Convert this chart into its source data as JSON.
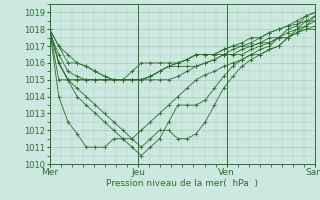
{
  "bg_color": "#cce8e0",
  "grid_color": "#aaccbb",
  "line_color": "#2d6e2d",
  "xlabel": "Pression niveau de la mer(  hPa  )",
  "xtick_labels": [
    "Mer",
    "Jeu",
    "Ven",
    "Sam"
  ],
  "xtick_positions": [
    0,
    1,
    2,
    3
  ],
  "ylim": [
    1010,
    1019
  ],
  "yticks": [
    1010,
    1011,
    1012,
    1013,
    1014,
    1015,
    1016,
    1017,
    1018,
    1019
  ],
  "series": [
    [
      1018.0,
      1017.0,
      1016.0,
      1016.0,
      1015.8,
      1015.5,
      1015.2,
      1015.0,
      1015.0,
      1015.0,
      1015.0,
      1015.2,
      1015.5,
      1015.8,
      1016.0,
      1016.2,
      1016.5,
      1016.5,
      1016.5,
      1016.5,
      1016.8,
      1017.0,
      1017.2,
      1017.5,
      1017.8,
      1018.0,
      1018.2,
      1018.5,
      1018.8,
      1019.0
    ],
    [
      1017.8,
      1016.5,
      1015.5,
      1015.2,
      1015.0,
      1015.0,
      1015.0,
      1015.0,
      1015.0,
      1015.0,
      1015.0,
      1015.2,
      1015.5,
      1015.8,
      1015.8,
      1015.8,
      1015.8,
      1016.0,
      1016.2,
      1016.5,
      1016.5,
      1016.5,
      1016.8,
      1017.0,
      1017.2,
      1017.5,
      1017.5,
      1017.8,
      1018.0,
      1018.0
    ],
    [
      1018.0,
      1016.0,
      1015.0,
      1015.0,
      1015.0,
      1015.0,
      1015.0,
      1015.0,
      1015.0,
      1015.0,
      1015.0,
      1015.0,
      1015.0,
      1015.0,
      1015.2,
      1015.5,
      1015.8,
      1016.0,
      1016.2,
      1016.5,
      1016.5,
      1016.8,
      1017.0,
      1017.2,
      1017.2,
      1017.5,
      1017.8,
      1018.0,
      1018.2,
      1018.5
    ],
    [
      1018.0,
      1015.0,
      1015.0,
      1015.0,
      1015.0,
      1015.0,
      1015.0,
      1015.0,
      1015.0,
      1015.5,
      1016.0,
      1016.0,
      1016.0,
      1016.0,
      1016.0,
      1016.2,
      1016.5,
      1016.5,
      1016.5,
      1016.8,
      1017.0,
      1017.0,
      1017.0,
      1017.2,
      1017.5,
      1017.5,
      1017.5,
      1017.8,
      1018.0,
      1018.2
    ],
    [
      1018.0,
      1014.0,
      1012.5,
      1011.8,
      1011.0,
      1011.0,
      1011.0,
      1011.5,
      1011.5,
      1011.5,
      1012.0,
      1012.5,
      1013.0,
      1013.5,
      1014.0,
      1014.5,
      1015.0,
      1015.3,
      1015.5,
      1015.8,
      1016.0,
      1016.2,
      1016.5,
      1016.5,
      1016.8,
      1017.0,
      1017.5,
      1017.8,
      1018.2,
      1018.8
    ],
    [
      1018.0,
      1016.0,
      1015.0,
      1014.5,
      1014.0,
      1013.5,
      1013.0,
      1012.5,
      1012.0,
      1011.5,
      1011.0,
      1011.5,
      1012.0,
      1012.0,
      1011.5,
      1011.5,
      1011.8,
      1012.5,
      1013.5,
      1014.5,
      1015.2,
      1015.8,
      1016.2,
      1016.5,
      1016.8,
      1017.0,
      1017.5,
      1018.0,
      1018.5,
      1018.8
    ],
    [
      1018.0,
      1016.0,
      1015.0,
      1014.0,
      1013.5,
      1013.0,
      1012.5,
      1012.0,
      1011.5,
      1011.0,
      1010.5,
      1011.0,
      1011.5,
      1012.5,
      1013.5,
      1013.5,
      1013.5,
      1013.8,
      1014.5,
      1015.2,
      1015.8,
      1016.2,
      1016.5,
      1016.8,
      1017.0,
      1017.5,
      1018.0,
      1018.2,
      1018.8,
      1019.0
    ],
    [
      1018.0,
      1017.0,
      1016.5,
      1016.0,
      1015.8,
      1015.5,
      1015.2,
      1015.0,
      1015.0,
      1015.0,
      1015.0,
      1015.2,
      1015.5,
      1015.8,
      1016.0,
      1016.2,
      1016.5,
      1016.5,
      1016.5,
      1016.8,
      1017.0,
      1017.2,
      1017.5,
      1017.5,
      1017.8,
      1018.0,
      1018.2,
      1018.3,
      1018.5,
      1018.5
    ]
  ]
}
